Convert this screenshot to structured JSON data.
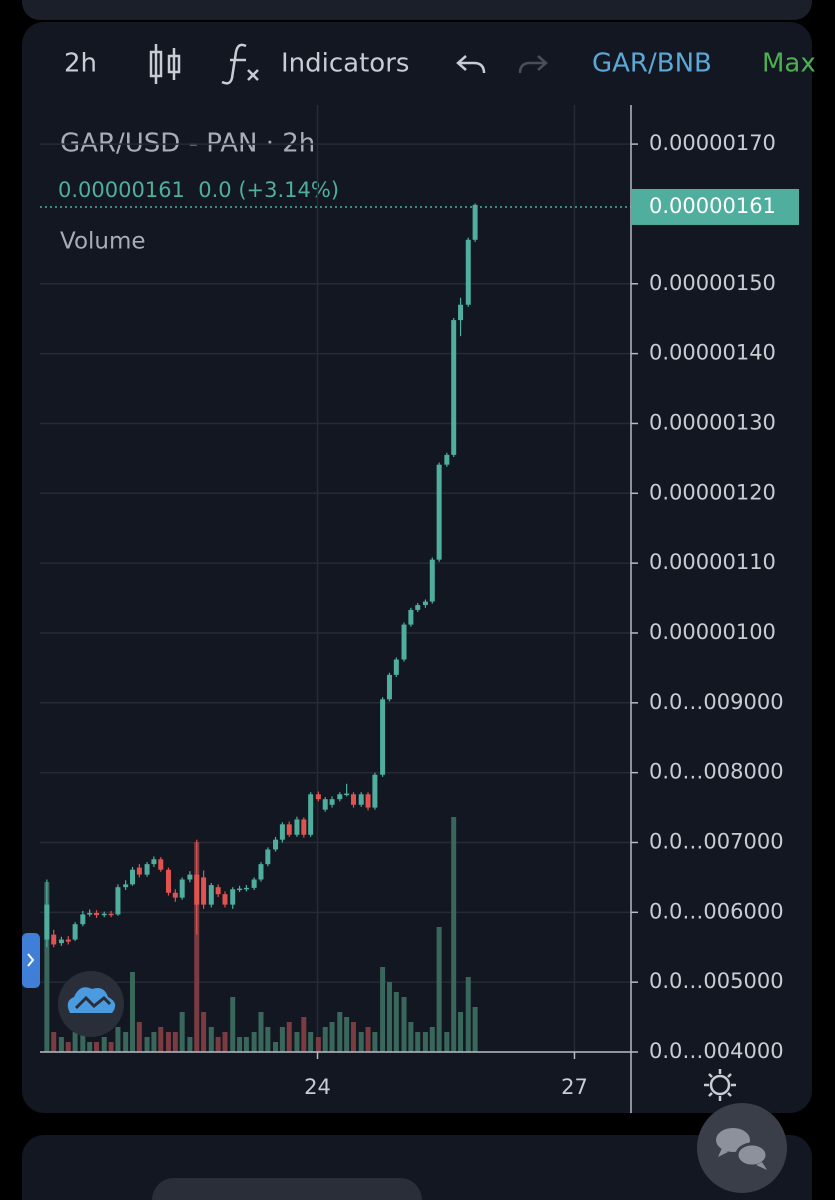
{
  "toolbar": {
    "interval": "2h",
    "indicators": "Indicators",
    "pair": "GAR/BNB",
    "range": "Max"
  },
  "chart_data": {
    "type": "candlestick",
    "title": "GAR/USD - PAN · 2h",
    "legend_text": "0.00000161  0.0 (+3.14%)",
    "volume_label": "Volume",
    "x": [
      20.84,
      20.92,
      21.01,
      21.09,
      21.17,
      21.26,
      21.34,
      21.42,
      21.51,
      21.59,
      21.67,
      21.76,
      21.84,
      21.92,
      22.01,
      22.09,
      22.17,
      22.26,
      22.34,
      22.42,
      22.51,
      22.59,
      22.67,
      22.76,
      22.84,
      22.92,
      23.01,
      23.09,
      23.17,
      23.26,
      23.34,
      23.42,
      23.51,
      23.59,
      23.67,
      23.76,
      23.84,
      23.92,
      24.01,
      24.09,
      24.17,
      24.26,
      24.34,
      24.42,
      24.51,
      24.59,
      24.67,
      24.76,
      24.84,
      24.92,
      25.01,
      25.09,
      25.17,
      25.26,
      25.34,
      25.42,
      25.51,
      25.59,
      25.67,
      25.76,
      25.84
    ],
    "open": [
      5.61e-07,
      5.68e-07,
      5.56e-07,
      5.61e-07,
      5.61e-07,
      5.83e-07,
      5.97e-07,
      5.99e-07,
      5.96e-07,
      5.98e-07,
      5.97e-07,
      6.36e-07,
      6.4e-07,
      6.64e-07,
      6.54e-07,
      6.69e-07,
      6.76e-07,
      6.61e-07,
      6.28e-07,
      6.21e-07,
      6.47e-07,
      6.54e-07,
      6.5e-07,
      6.11e-07,
      6.36e-07,
      6.26e-07,
      6.11e-07,
      6.33e-07,
      6.33e-07,
      6.35e-07,
      6.47e-07,
      6.69e-07,
      6.9e-07,
      7.04e-07,
      7.26e-07,
      7.11e-07,
      7.33e-07,
      7.11e-07,
      7.69e-07,
      7.47e-07,
      7.54e-07,
      7.62e-07,
      7.69e-07,
      7.69e-07,
      7.54e-07,
      7.69e-07,
      7.5e-07,
      7.97e-07,
      9.05e-07,
      9.4e-07,
      9.62e-07,
      1.012e-06,
      1.033e-06,
      1.04e-06,
      1.045e-06,
      1.105e-06,
      1.241e-06,
      1.255e-06,
      1.448e-06,
      1.47e-06,
      1.563e-06
    ],
    "high": [
      6.47e-07,
      5.75e-07,
      5.65e-07,
      5.66e-07,
      5.86e-07,
      6.02e-07,
      6.04e-07,
      6.03e-07,
      6.01e-07,
      6.02e-07,
      6.4e-07,
      6.46e-07,
      6.65e-07,
      6.69e-07,
      6.72e-07,
      6.8e-07,
      6.79e-07,
      6.64e-07,
      6.33e-07,
      6.5e-07,
      6.59e-07,
      7.04e-07,
      6.6e-07,
      6.42e-07,
      6.4e-07,
      6.3e-07,
      6.36e-07,
      6.38e-07,
      6.39e-07,
      6.5e-07,
      6.72e-07,
      6.93e-07,
      7.08e-07,
      7.29e-07,
      7.3e-07,
      7.37e-07,
      7.36e-07,
      7.72e-07,
      7.73e-07,
      7.65e-07,
      7.66e-07,
      7.72e-07,
      7.84e-07,
      7.72e-07,
      7.72e-07,
      7.72e-07,
      8e-07,
      9.08e-07,
      9.43e-07,
      9.65e-07,
      1.015e-06,
      1.036e-06,
      1.043e-06,
      1.048e-06,
      1.108e-06,
      1.244e-06,
      1.258e-06,
      1.451e-06,
      1.48e-06,
      1.566e-06,
      1.615e-06
    ],
    "low": [
      5.5e-07,
      5.5e-07,
      5.52e-07,
      5.54e-07,
      5.59e-07,
      5.8e-07,
      5.94e-07,
      5.92e-07,
      5.93e-07,
      5.93e-07,
      5.95e-07,
      6.32e-07,
      6.38e-07,
      6.5e-07,
      6.51e-07,
      6.65e-07,
      6.58e-07,
      6.24e-07,
      6.15e-07,
      6.18e-07,
      6.43e-07,
      5.68e-07,
      6.05e-07,
      6.07e-07,
      6.22e-07,
      6.07e-07,
      6.05e-07,
      6.29e-07,
      6.3e-07,
      6.32e-07,
      6.44e-07,
      6.66e-07,
      6.87e-07,
      7e-07,
      7.08e-07,
      7.08e-07,
      7.07e-07,
      7.08e-07,
      7.59e-07,
      7.44e-07,
      7.5e-07,
      7.59e-07,
      7.66e-07,
      7.5e-07,
      7.51e-07,
      7.46e-07,
      7.47e-07,
      7.94e-07,
      9.02e-07,
      9.37e-07,
      9.59e-07,
      1.009e-06,
      1.03e-06,
      1.036e-06,
      1.042e-06,
      1.102e-06,
      1.238e-06,
      1.252e-06,
      1.425e-06,
      1.467e-06,
      1.56e-06
    ],
    "close": [
      6.11e-07,
      5.54e-07,
      5.61e-07,
      5.58e-07,
      5.83e-07,
      5.97e-07,
      5.99e-07,
      5.96e-07,
      5.98e-07,
      5.97e-07,
      6.36e-07,
      6.4e-07,
      6.61e-07,
      6.54e-07,
      6.69e-07,
      6.76e-07,
      6.61e-07,
      6.28e-07,
      6.21e-07,
      6.47e-07,
      6.54e-07,
      6.11e-07,
      6.11e-07,
      6.39e-07,
      6.26e-07,
      6.11e-07,
      6.33e-07,
      6.34e-07,
      6.35e-07,
      6.47e-07,
      6.69e-07,
      6.9e-07,
      7.04e-07,
      7.26e-07,
      7.11e-07,
      7.33e-07,
      7.11e-07,
      7.69e-07,
      7.62e-07,
      7.62e-07,
      7.62e-07,
      7.69e-07,
      7.7e-07,
      7.54e-07,
      7.69e-07,
      7.5e-07,
      7.97e-07,
      9.05e-07,
      9.4e-07,
      9.62e-07,
      1.012e-06,
      1.033e-06,
      1.04e-06,
      1.045e-06,
      1.105e-06,
      1.241e-06,
      1.255e-06,
      1.448e-06,
      1.47e-06,
      1.563e-06,
      1.613e-06
    ],
    "up_color": "#4fae9e",
    "down_color": "#e0534f",
    "volume": {
      "axis": "y2",
      "up_color": "#3a675c",
      "down_color": "#7a3b41",
      "values": [
        170,
        20,
        15,
        10,
        20,
        25,
        10,
        10,
        15,
        10,
        25,
        20,
        80,
        30,
        15,
        20,
        25,
        20,
        20,
        40,
        15,
        210,
        40,
        25,
        15,
        20,
        55,
        15,
        15,
        20,
        40,
        25,
        10,
        25,
        30,
        20,
        35,
        20,
        15,
        25,
        30,
        40,
        35,
        30,
        20,
        25,
        20,
        85,
        70,
        60,
        55,
        30,
        20,
        20,
        25,
        125,
        20,
        235,
        40,
        75,
        45
      ]
    },
    "last_price": {
      "value": 1.61e-06,
      "label": "0.00000161"
    },
    "xlim": [
      20.76,
      27.66
    ],
    "xticks": [
      24,
      27
    ],
    "ylim": [
      4e-07,
      1.756e-06
    ],
    "yticks": [
      {
        "value": 1.7e-06,
        "label": "0.00000170"
      },
      {
        "value": 1.5e-06,
        "label": "0.00000150"
      },
      {
        "value": 1.4e-06,
        "label": "0.00000140"
      },
      {
        "value": 1.3e-06,
        "label": "0.00000130"
      },
      {
        "value": 1.2e-06,
        "label": "0.00000120"
      },
      {
        "value": 1.1e-06,
        "label": "0.00000110"
      },
      {
        "value": 1e-06,
        "label": "0.00000100"
      },
      {
        "value": 9e-07,
        "label": "0.0…009000"
      },
      {
        "value": 8e-07,
        "label": "0.0…008000"
      },
      {
        "value": 7e-07,
        "label": "0.0…007000"
      },
      {
        "value": 6e-07,
        "label": "0.0…006000"
      },
      {
        "value": 5e-07,
        "label": "0.0…005000"
      },
      {
        "value": 4e-07,
        "label": "0.0…004000"
      }
    ],
    "y2lim": [
      0,
      250
    ],
    "grid": true
  }
}
